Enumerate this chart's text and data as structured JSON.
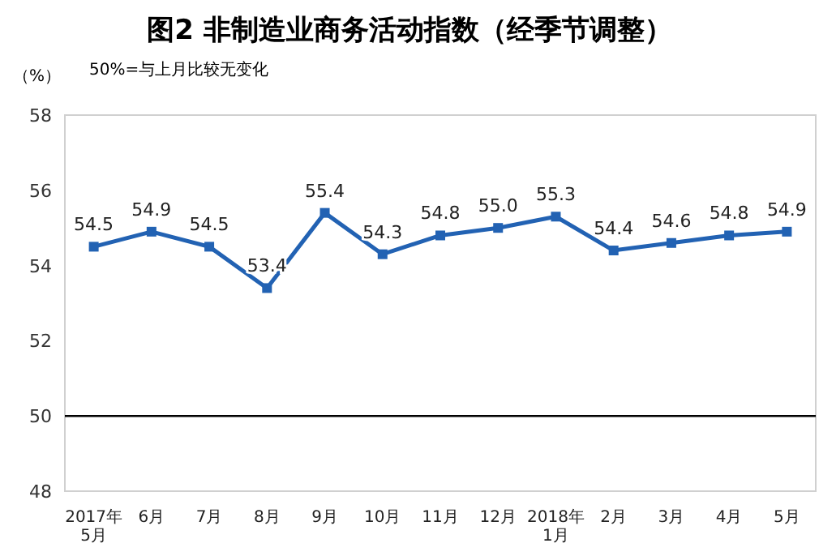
{
  "chart_data": {
    "type": "line",
    "title": "图2  非制造业商务活动指数（经季节调整）",
    "ylabel": "（%）",
    "annotations": [
      "50%=与上月比较无变化"
    ],
    "categories": [
      "2017年\n5月",
      "6月",
      "7月",
      "8月",
      "9月",
      "10月",
      "11月",
      "12月",
      "2018年\n1月",
      "2月",
      "3月",
      "4月",
      "5月"
    ],
    "series": [
      {
        "color": "#2262b3",
        "values": [
          54.5,
          54.9,
          54.5,
          53.4,
          55.4,
          54.3,
          54.8,
          55.0,
          55.3,
          54.4,
          54.6,
          54.8,
          54.9
        ],
        "value_labels": [
          "54.5",
          "54.9",
          "54.5",
          "53.4",
          "55.4",
          "54.3",
          "54.8",
          "55.0",
          "55.3",
          "54.4",
          "54.6",
          "54.8",
          "54.9"
        ]
      }
    ],
    "ylim": [
      48,
      58
    ],
    "yticks": [
      48,
      50,
      52,
      54,
      56,
      58
    ],
    "ref_lines": [
      {
        "axis": "y",
        "value": 50,
        "color": "#000000"
      }
    ],
    "marker": "square",
    "grid": false
  }
}
